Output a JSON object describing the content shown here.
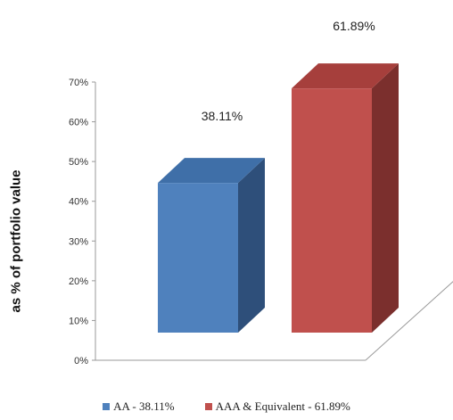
{
  "chart_data": {
    "type": "bar",
    "categories": [
      "AA - 38.11%",
      "AAA & Equivalent - 61.89%"
    ],
    "values": [
      38.11,
      61.89
    ],
    "data_labels": [
      "38.11%",
      "61.89%"
    ],
    "ylabel": "as % of portfolio value",
    "ylim": [
      0,
      70
    ],
    "yticks": [
      "0%",
      "10%",
      "20%",
      "30%",
      "40%",
      "50%",
      "60%",
      "70%"
    ],
    "legend": [
      "AA - 38.11%",
      "AAA & Equivalent - 61.89%"
    ],
    "legend_position": "bottom",
    "grid": false,
    "style": "3d-bar",
    "colors": {
      "series": [
        "#4f81bd",
        "#c0504d"
      ],
      "tops": [
        "#3f6fa8",
        "#a63f3c"
      ],
      "sides": [
        "#2e4f7a",
        "#7b2f2d"
      ]
    }
  }
}
